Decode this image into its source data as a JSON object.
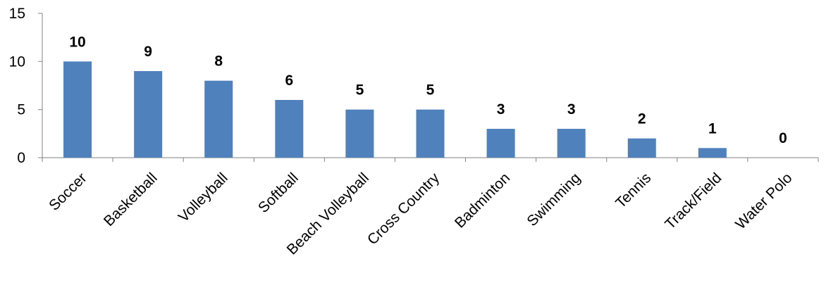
{
  "chart_data": {
    "type": "bar",
    "title": "",
    "xlabel": "",
    "ylabel": "",
    "categories": [
      "Soccer",
      "Basketball",
      "Volleyball",
      "Softball",
      "Beach Volleyball",
      "Cross Country",
      "Badminton",
      "Swimming",
      "Tennis",
      "Track/Field",
      "Water Polo"
    ],
    "values": [
      10,
      9,
      8,
      6,
      5,
      5,
      3,
      3,
      2,
      1,
      0
    ],
    "ylim": [
      0,
      15
    ],
    "yticks": [
      0,
      5,
      10,
      15
    ],
    "grid": false,
    "legend": "none",
    "data_labels": true,
    "bar_color": "#4F81BD",
    "axis_color": "#808080"
  }
}
